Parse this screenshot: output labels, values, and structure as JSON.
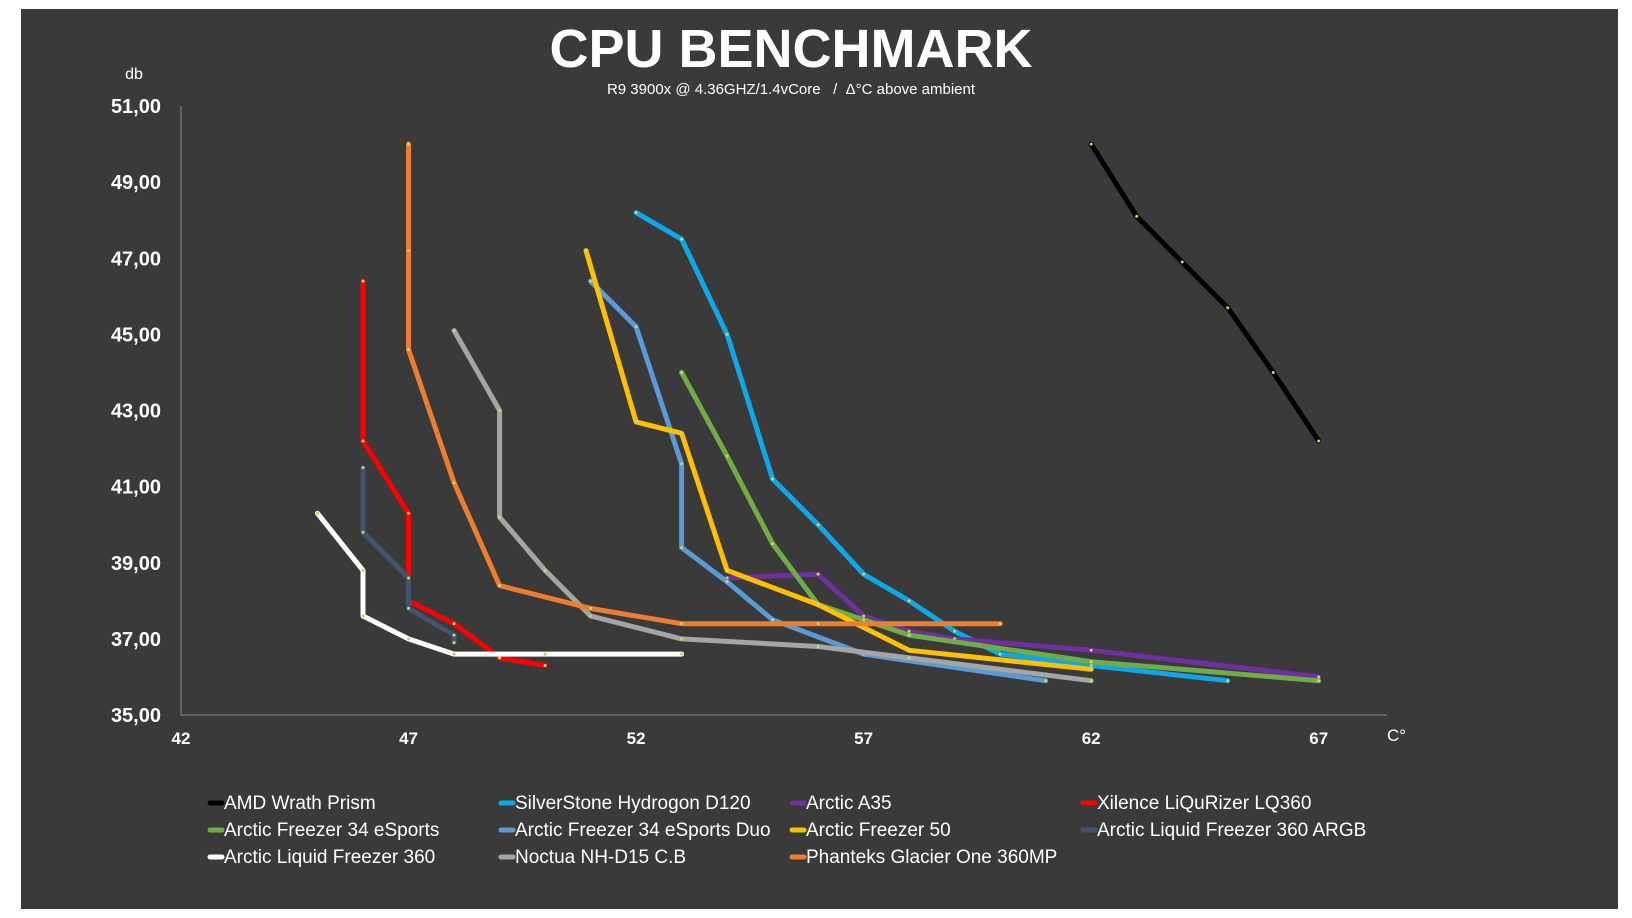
{
  "chart_data": {
    "type": "line",
    "title": "CPU BENCHMARK",
    "subtitle": "R9 3900x @ 4.36GHZ/1.4vCore   /  Δ°C above ambient",
    "ylabel": "db",
    "xlabel": "C°",
    "xlim": [
      42,
      68.5
    ],
    "ylim": [
      35,
      51
    ],
    "x_ticks": [
      42,
      47,
      52,
      57,
      62,
      67
    ],
    "y_ticks": [
      35,
      37,
      39,
      41,
      43,
      45,
      47,
      49,
      51
    ],
    "x_tick_labels": [
      "42",
      "47",
      "52",
      "57",
      "62",
      "67"
    ],
    "y_tick_labels": [
      "35,00",
      "37,00",
      "39,00",
      "41,00",
      "43,00",
      "45,00",
      "47,00",
      "49,00",
      "51,00"
    ],
    "grid": false,
    "legend_position": "bottom",
    "series": [
      {
        "name": "AMD Wrath Prism",
        "color": "#000000",
        "points": [
          [
            62,
            50
          ],
          [
            63,
            48.1
          ],
          [
            64,
            46.9
          ],
          [
            65,
            45.7
          ],
          [
            66,
            44.0
          ],
          [
            67,
            42.2
          ]
        ]
      },
      {
        "name": "SilverStone Hydrogon D120",
        "color": "#0fa8e6",
        "points": [
          [
            52,
            48.2
          ],
          [
            53,
            47.5
          ],
          [
            54,
            45.0
          ],
          [
            55,
            41.2
          ],
          [
            56,
            40.0
          ],
          [
            57,
            38.7
          ],
          [
            58,
            38.0
          ],
          [
            59,
            37.2
          ],
          [
            60,
            36.6
          ],
          [
            62,
            36.3
          ],
          [
            65,
            35.9
          ]
        ]
      },
      {
        "name": "Arctic A35",
        "color": "#7030a0",
        "points": [
          [
            54,
            38.6
          ],
          [
            56,
            38.7
          ],
          [
            57,
            37.6
          ],
          [
            58,
            37.2
          ],
          [
            59,
            37.0
          ],
          [
            62,
            36.7
          ],
          [
            67,
            36.0
          ]
        ]
      },
      {
        "name": "Xilence LiQuRizer LQ360",
        "color": "#ff0000",
        "points": [
          [
            46,
            46.4
          ],
          [
            46,
            42.2
          ],
          [
            47,
            40.3
          ],
          [
            47,
            38.0
          ],
          [
            48,
            37.4
          ],
          [
            49,
            36.5
          ],
          [
            50,
            36.3
          ]
        ]
      },
      {
        "name": "Arctic Freezer 34 eSports",
        "color": "#70ad47",
        "points": [
          [
            53,
            44.0
          ],
          [
            54,
            41.8
          ],
          [
            55,
            39.5
          ],
          [
            56,
            37.9
          ],
          [
            57,
            37.5
          ],
          [
            58,
            37.1
          ],
          [
            62,
            36.4
          ],
          [
            67,
            35.9
          ]
        ]
      },
      {
        "name": "Arctic Freezer 34 eSports Duo",
        "color": "#5b9bd5",
        "points": [
          [
            51,
            46.4
          ],
          [
            52,
            45.2
          ],
          [
            53,
            41.6
          ],
          [
            53,
            39.4
          ],
          [
            54,
            38.5
          ],
          [
            55,
            37.5
          ],
          [
            57,
            36.6
          ],
          [
            61,
            35.9
          ]
        ]
      },
      {
        "name": "Arctic Freezer 50",
        "color": "#ffc000",
        "points": [
          [
            50.9,
            47.2
          ],
          [
            52,
            42.7
          ],
          [
            53,
            42.4
          ],
          [
            54,
            38.8
          ],
          [
            56,
            37.9
          ],
          [
            58,
            36.7
          ],
          [
            62,
            36.2
          ]
        ]
      },
      {
        "name": "Arctic Liquid Freezer 360 ARGB",
        "color": "#44546a",
        "points": [
          [
            46,
            41.5
          ],
          [
            46,
            39.8
          ],
          [
            47,
            38.6
          ],
          [
            47,
            37.8
          ],
          [
            48,
            37.1
          ],
          [
            48,
            36.9
          ]
        ]
      },
      {
        "name": "Arctic Liquid Freezer 360",
        "color": "#ffffff",
        "points": [
          [
            45,
            40.3
          ],
          [
            46,
            38.8
          ],
          [
            46,
            37.6
          ],
          [
            47,
            37.0
          ],
          [
            48,
            36.6
          ],
          [
            50,
            36.6
          ],
          [
            53,
            36.6
          ]
        ]
      },
      {
        "name": "Noctua NH-D15 C.B",
        "color": "#a5a5a5",
        "points": [
          [
            48,
            45.1
          ],
          [
            49,
            43.0
          ],
          [
            49,
            40.2
          ],
          [
            50,
            38.8
          ],
          [
            51,
            37.6
          ],
          [
            53,
            37.0
          ],
          [
            56,
            36.8
          ],
          [
            58,
            36.5
          ],
          [
            62,
            35.9
          ]
        ]
      },
      {
        "name": "Phanteks Glacier One 360MP",
        "color": "#ed7d31",
        "points": [
          [
            47,
            50.0
          ],
          [
            47,
            47.2
          ],
          [
            47,
            44.6
          ],
          [
            48,
            41.1
          ],
          [
            49,
            38.4
          ],
          [
            51,
            37.8
          ],
          [
            53,
            37.4
          ],
          [
            56,
            37.4
          ],
          [
            60,
            37.4
          ]
        ]
      }
    ]
  }
}
